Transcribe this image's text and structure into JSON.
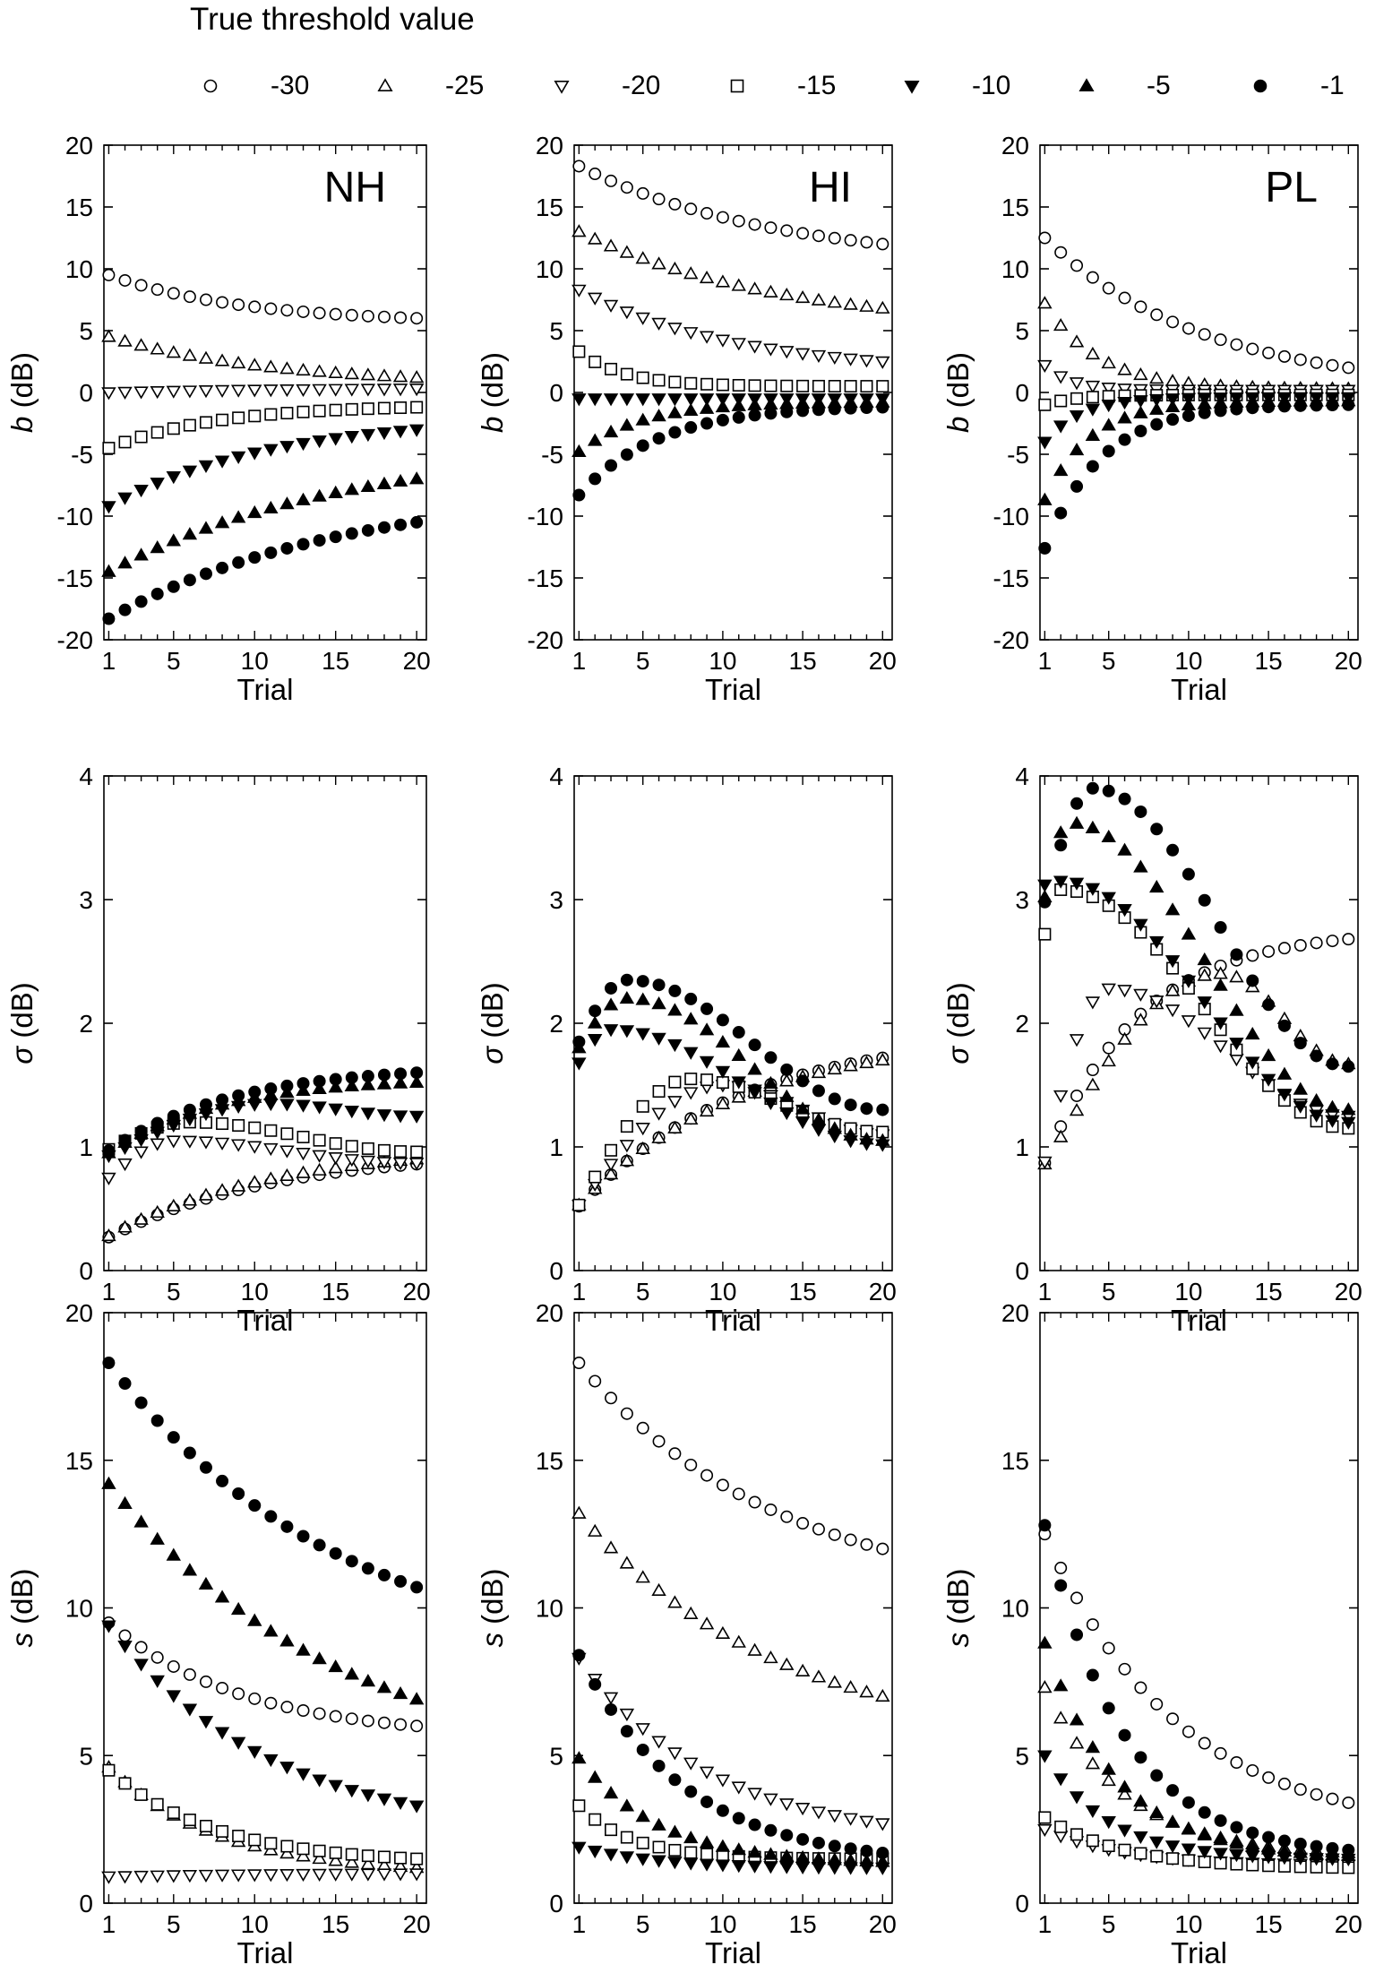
{
  "legend": {
    "title": "True threshold value",
    "items": [
      {
        "label": "-30",
        "marker": "circle-open"
      },
      {
        "label": "-25",
        "marker": "triangle-up-open"
      },
      {
        "label": "-20",
        "marker": "triangle-down-open"
      },
      {
        "label": "-15",
        "marker": "square-open"
      },
      {
        "label": "-10",
        "marker": "triangle-down-filled"
      },
      {
        "label": "-5",
        "marker": "triangle-up-filled"
      },
      {
        "label": "-1",
        "marker": "circle-filled"
      }
    ]
  },
  "chart_data": [
    {
      "type": "scatter",
      "title": "NH",
      "xlabel": "Trial",
      "ylabel_symbol": "b",
      "ylabel_unit": " (dB)",
      "xlim": [
        0.7,
        20.6
      ],
      "ylim": [
        -20,
        20
      ],
      "xticks": [
        1,
        5,
        10,
        15,
        20
      ],
      "yticks": [
        -20,
        -15,
        -10,
        -5,
        0,
        5,
        10,
        15,
        20
      ],
      "series": [
        {
          "name": "-30",
          "start": 9.5,
          "end": 6.0,
          "rate": 0.12
        },
        {
          "name": "-25",
          "start": 4.5,
          "end": 1.2,
          "rate": 0.1
        },
        {
          "name": "-20",
          "start": 0.0,
          "end": 0.3,
          "rate": 0.1
        },
        {
          "name": "-15",
          "start": -4.5,
          "end": -1.2,
          "rate": 0.15
        },
        {
          "name": "-10",
          "start": -9.2,
          "end": -3.0,
          "rate": 0.1
        },
        {
          "name": "-5",
          "start": -14.5,
          "end": -7.0,
          "rate": 0.07
        },
        {
          "name": "-1",
          "start": -18.3,
          "end": -10.5,
          "rate": 0.07
        }
      ]
    },
    {
      "type": "scatter",
      "title": "HI",
      "xlabel": "Trial",
      "ylabel_symbol": "b",
      "ylabel_unit": " (dB)",
      "xlim": [
        0.7,
        20.6
      ],
      "ylim": [
        -20,
        20
      ],
      "xticks": [
        1,
        5,
        10,
        15,
        20
      ],
      "yticks": [
        -20,
        -15,
        -10,
        -5,
        0,
        5,
        10,
        15,
        20
      ],
      "series": [
        {
          "name": "-30",
          "start": 18.3,
          "end": 12.0,
          "rate": 0.08
        },
        {
          "name": "-25",
          "start": 13.0,
          "end": 6.8,
          "rate": 0.08
        },
        {
          "name": "-20",
          "start": 8.3,
          "end": 2.5,
          "rate": 0.1
        },
        {
          "name": "-15",
          "start": 3.3,
          "end": 0.5,
          "rate": 0.35
        },
        {
          "name": "-10",
          "start": -0.5,
          "end": -0.5,
          "rate": 0.2
        },
        {
          "name": "-5",
          "start": -4.8,
          "end": -0.8,
          "rate": 0.25
        },
        {
          "name": "-1",
          "start": -8.3,
          "end": -1.2,
          "rate": 0.2
        }
      ]
    },
    {
      "type": "scatter",
      "title": "PL",
      "xlabel": "Trial",
      "ylabel_symbol": "b",
      "ylabel_unit": " (dB)",
      "xlim": [
        0.7,
        20.6
      ],
      "ylim": [
        -20,
        20
      ],
      "xticks": [
        1,
        5,
        10,
        15,
        20
      ],
      "yticks": [
        -20,
        -15,
        -10,
        -5,
        0,
        5,
        10,
        15,
        20
      ],
      "series": [
        {
          "name": "-30",
          "start": 12.5,
          "end": 2.0,
          "rate": 0.1
        },
        {
          "name": "-25",
          "start": 7.2,
          "end": 0.3,
          "rate": 0.3
        },
        {
          "name": "-20",
          "start": 2.2,
          "end": 0.2,
          "rate": 0.6
        },
        {
          "name": "-15",
          "start": -1.0,
          "end": -0.2,
          "rate": 0.5
        },
        {
          "name": "-10",
          "start": -4.0,
          "end": -0.4,
          "rate": 0.45
        },
        {
          "name": "-5",
          "start": -8.7,
          "end": -0.7,
          "rate": 0.35
        },
        {
          "name": "-1",
          "start": -12.6,
          "end": -1.0,
          "rate": 0.28
        }
      ]
    },
    {
      "type": "scatter",
      "xlabel": "Trial",
      "ylabel_symbol": "σ",
      "ylabel_unit": " (dB)",
      "xlim": [
        0.7,
        20.6
      ],
      "ylim": [
        0,
        4
      ],
      "xticks": [
        1,
        5,
        10,
        15,
        20
      ],
      "yticks": [
        0,
        1,
        2,
        3,
        4
      ],
      "series": [
        {
          "name": "-30",
          "start": 0.27,
          "end": 0.86,
          "rate": 0.1
        },
        {
          "name": "-25",
          "start": 0.28,
          "end": 0.9,
          "rate": 0.1
        },
        {
          "name": "-20",
          "start": 0.75,
          "end": 0.87,
          "curve": "hump",
          "peak": 1.05,
          "peak_at": 5
        },
        {
          "name": "-15",
          "start": 0.98,
          "end": 0.96,
          "curve": "hump",
          "peak": 1.2,
          "peak_at": 6
        },
        {
          "name": "-10",
          "start": 0.93,
          "end": 1.25,
          "curve": "hump",
          "peak": 1.35,
          "peak_at": 11
        },
        {
          "name": "-5",
          "start": 0.95,
          "end": 1.52,
          "rate": 0.15
        },
        {
          "name": "-1",
          "start": 0.97,
          "end": 1.6,
          "rate": 0.13
        }
      ]
    },
    {
      "type": "scatter",
      "xlabel": "Trial",
      "ylabel_symbol": "σ",
      "ylabel_unit": " (dB)",
      "xlim": [
        0.7,
        20.6
      ],
      "ylim": [
        0,
        4
      ],
      "xticks": [
        1,
        5,
        10,
        15,
        20
      ],
      "yticks": [
        0,
        1,
        2,
        3,
        4
      ],
      "series": [
        {
          "name": "-30",
          "start": 0.52,
          "end": 1.72,
          "rate": 0.1
        },
        {
          "name": "-25",
          "start": 0.53,
          "end": 1.7,
          "rate": 0.1
        },
        {
          "name": "-20",
          "start": 0.53,
          "end": 1.1,
          "curve": "hump",
          "peak": 1.5,
          "peak_at": 10
        },
        {
          "name": "-15",
          "start": 0.53,
          "end": 1.12,
          "curve": "hump",
          "peak": 1.55,
          "peak_at": 8
        },
        {
          "name": "-10",
          "start": 1.68,
          "end": 1.02,
          "curve": "hump",
          "peak": 1.95,
          "peak_at": 3
        },
        {
          "name": "-5",
          "start": 1.8,
          "end": 1.05,
          "curve": "hump",
          "peak": 2.2,
          "peak_at": 4
        },
        {
          "name": "-1",
          "start": 1.85,
          "end": 1.3,
          "curve": "hump",
          "peak": 2.35,
          "peak_at": 4
        }
      ]
    },
    {
      "type": "scatter",
      "xlabel": "Trial",
      "ylabel_symbol": "σ",
      "ylabel_unit": " (dB)",
      "xlim": [
        0.7,
        20.6
      ],
      "ylim": [
        0,
        4
      ],
      "xticks": [
        1,
        5,
        10,
        15,
        20
      ],
      "yticks": [
        0,
        1,
        2,
        3,
        4
      ],
      "series": [
        {
          "name": "-30",
          "start": 0.87,
          "end": 2.68,
          "rate": 0.17
        },
        {
          "name": "-25",
          "start": 0.86,
          "end": 1.67,
          "curve": "hump",
          "peak": 2.4,
          "peak_at": 12
        },
        {
          "name": "-20",
          "start": 0.88,
          "end": 1.25,
          "curve": "hump",
          "peak": 2.28,
          "peak_at": 5
        },
        {
          "name": "-15",
          "start": 2.72,
          "end": 1.15,
          "curve": "hump",
          "peak": 3.08,
          "peak_at": 2
        },
        {
          "name": "-10",
          "start": 3.12,
          "end": 1.2,
          "curve": "hump",
          "peak": 3.15,
          "peak_at": 2
        },
        {
          "name": "-5",
          "start": 3.02,
          "end": 1.3,
          "curve": "hump",
          "peak": 3.62,
          "peak_at": 2.5
        },
        {
          "name": "-1",
          "start": 2.98,
          "end": 1.65,
          "curve": "hump",
          "peak": 3.9,
          "peak_at": 4
        }
      ]
    },
    {
      "type": "scatter",
      "xlabel": "Trial",
      "ylabel_symbol": "s",
      "ylabel_unit": " (dB)",
      "xlim": [
        0.7,
        20.6
      ],
      "ylim": [
        0,
        20
      ],
      "xticks": [
        1,
        5,
        10,
        15,
        20
      ],
      "yticks": [
        0,
        5,
        10,
        15,
        20
      ],
      "series": [
        {
          "name": "-30",
          "start": 9.5,
          "end": 6.0,
          "rate": 0.12
        },
        {
          "name": "-25",
          "start": 4.6,
          "end": 1.2,
          "rate": 0.15
        },
        {
          "name": "-20",
          "start": 0.9,
          "end": 1.0,
          "rate": 0.1
        },
        {
          "name": "-15",
          "start": 4.5,
          "end": 1.5,
          "rate": 0.15
        },
        {
          "name": "-10",
          "start": 9.4,
          "end": 3.3,
          "rate": 0.1
        },
        {
          "name": "-5",
          "start": 14.2,
          "end": 6.9,
          "rate": 0.07
        },
        {
          "name": "-1",
          "start": 18.3,
          "end": 10.7,
          "rate": 0.07
        }
      ]
    },
    {
      "type": "scatter",
      "xlabel": "Trial",
      "ylabel_symbol": "s",
      "ylabel_unit": " (dB)",
      "xlim": [
        0.7,
        20.6
      ],
      "ylim": [
        0,
        20
      ],
      "xticks": [
        1,
        5,
        10,
        15,
        20
      ],
      "yticks": [
        0,
        5,
        10,
        15,
        20
      ],
      "series": [
        {
          "name": "-30",
          "start": 18.3,
          "end": 12.0,
          "rate": 0.08
        },
        {
          "name": "-25",
          "start": 13.2,
          "end": 7.0,
          "rate": 0.08
        },
        {
          "name": "-20",
          "start": 8.3,
          "end": 2.7,
          "rate": 0.12
        },
        {
          "name": "-15",
          "start": 3.3,
          "end": 1.5,
          "rate": 0.3
        },
        {
          "name": "-10",
          "start": 1.9,
          "end": 1.2,
          "rate": 0.2
        },
        {
          "name": "-5",
          "start": 4.9,
          "end": 1.4,
          "rate": 0.2
        },
        {
          "name": "-1",
          "start": 8.4,
          "end": 1.7,
          "rate": 0.15
        }
      ]
    },
    {
      "type": "scatter",
      "xlabel": "Trial",
      "ylabel_symbol": "s",
      "ylabel_unit": " (dB)",
      "xlim": [
        0.7,
        20.6
      ],
      "ylim": [
        0,
        20
      ],
      "xticks": [
        1,
        5,
        10,
        15,
        20
      ],
      "yticks": [
        0,
        5,
        10,
        15,
        20
      ],
      "series": [
        {
          "name": "-30",
          "start": 12.5,
          "end": 3.4,
          "rate": 0.12
        },
        {
          "name": "-25",
          "start": 7.3,
          "end": 1.7,
          "rate": 0.2
        },
        {
          "name": "-20",
          "start": 2.5,
          "end": 1.3,
          "rate": 0.2
        },
        {
          "name": "-15",
          "start": 2.9,
          "end": 1.2,
          "rate": 0.2
        },
        {
          "name": "-10",
          "start": 5.0,
          "end": 1.5,
          "rate": 0.25
        },
        {
          "name": "-5",
          "start": 8.8,
          "end": 1.6,
          "rate": 0.22
        },
        {
          "name": "-1",
          "start": 12.8,
          "end": 1.8,
          "rate": 0.2
        }
      ]
    }
  ]
}
